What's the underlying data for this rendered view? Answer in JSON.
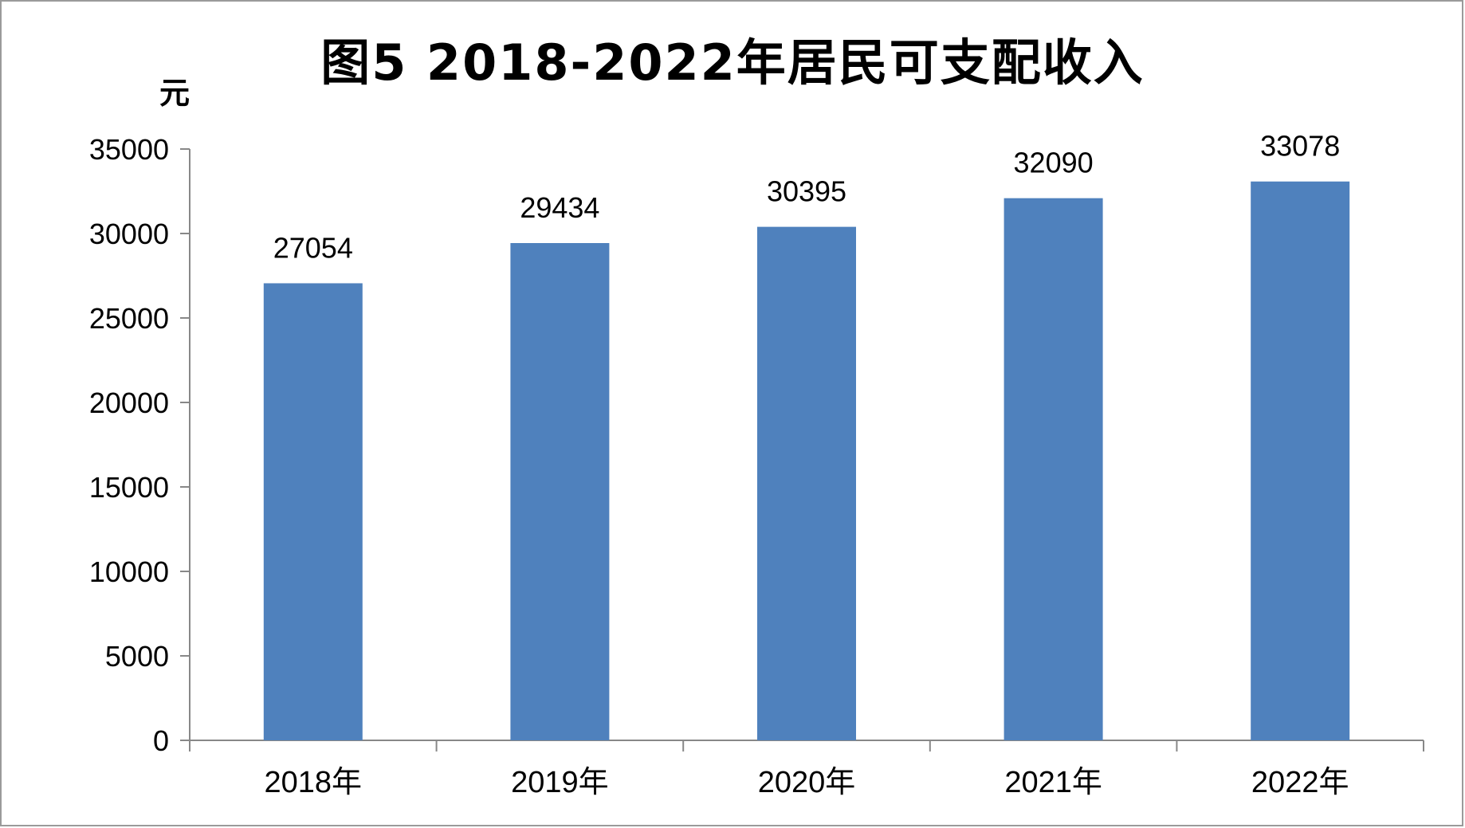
{
  "chart_data": {
    "type": "bar",
    "title": "图5  2018-2022年居民可支配收入",
    "ylabel": "元",
    "categories": [
      "2018年",
      "2019年",
      "2020年",
      "2021年",
      "2022年"
    ],
    "values": [
      27054,
      29434,
      30395,
      32090,
      33078
    ],
    "data_labels": [
      "27054",
      "29434",
      "30395",
      "32090",
      "33078"
    ],
    "ylim": [
      0,
      35000
    ],
    "yticks": [
      0,
      5000,
      10000,
      15000,
      20000,
      25000,
      30000,
      35000
    ],
    "ytick_labels": [
      "0",
      "5000",
      "10000",
      "15000",
      "20000",
      "25000",
      "30000",
      "35000"
    ],
    "bar_color": "#4f81bd",
    "grid": false,
    "legend": "none"
  }
}
